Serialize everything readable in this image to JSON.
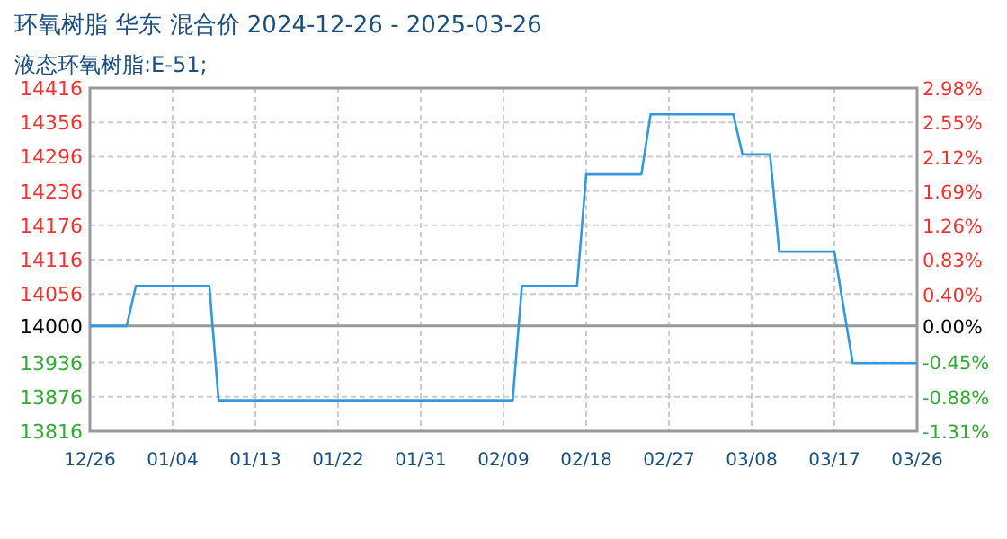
{
  "chart_data": {
    "type": "line",
    "title": "环氧树脂 华东 混合价 2024-12-26 - 2025-03-26",
    "subtitle": "液态环氧树脂:E-51;",
    "x": [
      "2024-12-26",
      "2024-12-30",
      "2024-12-31",
      "2025-01-08",
      "2025-01-09",
      "2025-02-10",
      "2025-02-11",
      "2025-02-17",
      "2025-02-18",
      "2025-02-24",
      "2025-02-25",
      "2025-03-06",
      "2025-03-07",
      "2025-03-10",
      "2025-03-11",
      "2025-03-17",
      "2025-03-19",
      "2025-03-26"
    ],
    "series": [
      {
        "color": "#3399dd",
        "values": [
          14000,
          14000,
          14070,
          14070,
          13870,
          13870,
          14070,
          14070,
          14265,
          14265,
          14370,
          14370,
          14300,
          14300,
          14130,
          14130,
          13935,
          13935
        ]
      }
    ],
    "xlim": [
      "2024-12-26",
      "2025-03-26"
    ],
    "xticks": [
      {
        "value": "2024-12-26",
        "label": "12/26"
      },
      {
        "value": "2025-01-04",
        "label": "01/04"
      },
      {
        "value": "2025-01-13",
        "label": "01/13"
      },
      {
        "value": "2025-01-22",
        "label": "01/22"
      },
      {
        "value": "2025-01-31",
        "label": "01/31"
      },
      {
        "value": "2025-02-09",
        "label": "02/09"
      },
      {
        "value": "2025-02-18",
        "label": "02/18"
      },
      {
        "value": "2025-02-27",
        "label": "02/27"
      },
      {
        "value": "2025-03-08",
        "label": "03/08"
      },
      {
        "value": "2025-03-17",
        "label": "03/17"
      },
      {
        "value": "2025-03-26",
        "label": "03/26"
      }
    ],
    "ylim": [
      13816,
      14416
    ],
    "yticks": [
      13816,
      13876,
      13936,
      14000,
      14056,
      14116,
      14176,
      14236,
      14296,
      14356,
      14416
    ],
    "y2lim": [
      -1.31,
      2.98
    ],
    "y2ticks": [
      {
        "value": -1.31,
        "label": "-1.31%"
      },
      {
        "value": -0.88,
        "label": "-0.88%"
      },
      {
        "value": -0.45,
        "label": "-0.45%"
      },
      {
        "value": 0,
        "label": "0.00%"
      },
      {
        "value": 0.4,
        "label": "0.40%"
      },
      {
        "value": 0.83,
        "label": "0.83%"
      },
      {
        "value": 1.26,
        "label": "1.26%"
      },
      {
        "value": 1.69,
        "label": "1.69%"
      },
      {
        "value": 2.12,
        "label": "2.12%"
      },
      {
        "value": 2.55,
        "label": "2.55%"
      },
      {
        "value": 2.98,
        "label": "2.98%"
      }
    ],
    "ref_lines": [
      {
        "axis": "y",
        "value": 14000,
        "color": "#999999"
      }
    ],
    "grid": true,
    "marker": "none",
    "line_style": "solid"
  }
}
